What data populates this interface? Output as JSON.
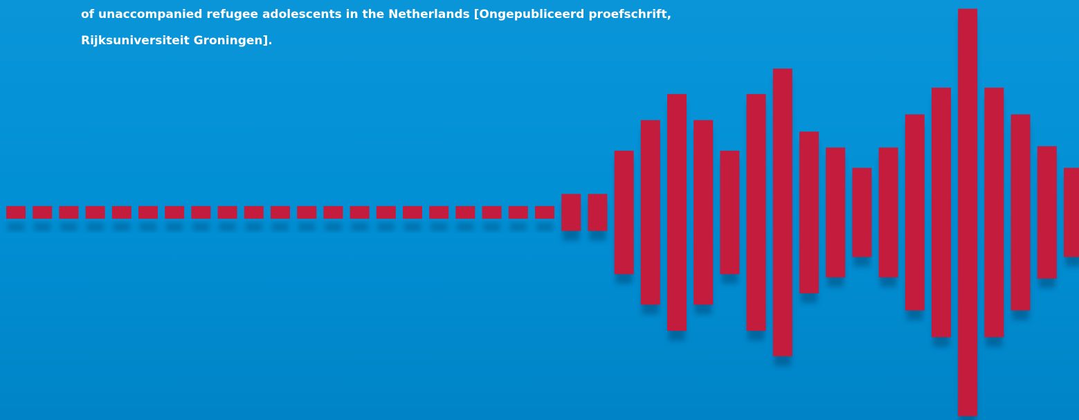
{
  "citation": {
    "line1": "of unaccompanied refugee adolescents in the Netherlands [Ongepubliceerd proefschrift,",
    "line2": "Rijksuniversiteit Groningen]."
  },
  "waveform": {
    "bar_color": "#c41c3c",
    "shadow_color": "#003f6a",
    "background_color": "#0290d5",
    "levels": [
      1,
      1,
      1,
      1,
      1,
      1,
      1,
      1,
      1,
      1,
      1,
      1,
      1,
      1,
      1,
      1,
      1,
      1,
      1,
      1,
      1,
      2.9,
      2.9,
      9.7,
      14.5,
      18.6,
      14.5,
      9.7,
      18.6,
      22.6,
      12.7,
      10.2,
      7.0,
      10.2,
      15.4,
      19.6,
      32.0,
      19.6,
      15.4,
      10.4,
      7.0
    ]
  }
}
